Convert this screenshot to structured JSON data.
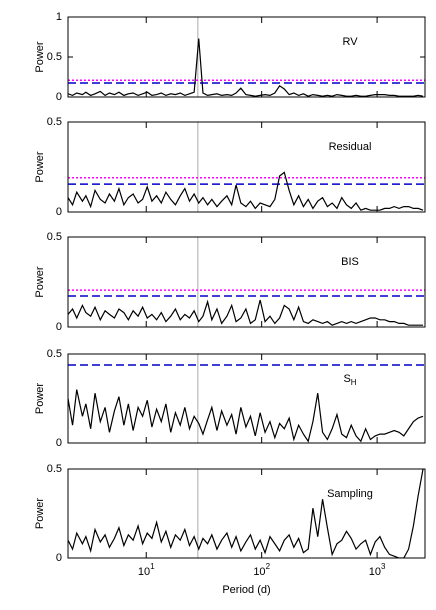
{
  "chart_data": [
    {
      "type": "line",
      "title": "RV",
      "ylabel": "Power",
      "xscale": "log",
      "xlim": [
        2.1,
        2600
      ],
      "xticks": [
        10,
        100,
        1000
      ],
      "ylim": [
        0,
        1
      ],
      "yticks": [
        0,
        0.5,
        1
      ],
      "vline": 28,
      "hlines": [
        {
          "value": 0.21,
          "color": "#ff00ff",
          "style": "dotted"
        },
        {
          "value": 0.175,
          "color": "#0000cc",
          "style": "dashed"
        }
      ],
      "series": [
        {
          "color": "#000000",
          "x": [
            2.1,
            2.3,
            2.5,
            2.8,
            3.0,
            3.3,
            3.6,
            4.0,
            4.4,
            4.8,
            5.3,
            5.8,
            6.4,
            7.0,
            7.7,
            8.5,
            9.3,
            10.2,
            11.2,
            12.3,
            13.5,
            14.8,
            16.3,
            17.9,
            19.7,
            21.6,
            23.7,
            26,
            28.5,
            31,
            34,
            37,
            41,
            45,
            50,
            55,
            60,
            66,
            73,
            80,
            88,
            97,
            107,
            118,
            130,
            143,
            157,
            173,
            190,
            209,
            230,
            253,
            278,
            306,
            337,
            371,
            408,
            449,
            494,
            543,
            597,
            657,
            723,
            795,
            875,
            962,
            1058,
            1164,
            1280,
            1408,
            1549,
            1704,
            1874,
            2062,
            2268,
            2500
          ],
          "values": [
            0.04,
            0.02,
            0.05,
            0.03,
            0.06,
            0.02,
            0.04,
            0.07,
            0.02,
            0.05,
            0.03,
            0.06,
            0.02,
            0.04,
            0.05,
            0.02,
            0.04,
            0.06,
            0.02,
            0.03,
            0.05,
            0.02,
            0.04,
            0.03,
            0.05,
            0.02,
            0.04,
            0.06,
            0.73,
            0.05,
            0.02,
            0.03,
            0.04,
            0.02,
            0.03,
            0.02,
            0.05,
            0.11,
            0.03,
            0.02,
            0.01,
            0.02,
            0.03,
            0.02,
            0.05,
            0.14,
            0.1,
            0.03,
            0.05,
            0.02,
            0.04,
            0.01,
            0.03,
            0.02,
            0.01,
            0.02,
            0.01,
            0.03,
            0.02,
            0.01,
            0.01,
            0.02,
            0.01,
            0.01,
            0.02,
            0.03,
            0.03,
            0.03,
            0.02,
            0.02,
            0.01,
            0.01,
            0.01,
            0.01,
            0.02,
            0.01
          ]
        }
      ]
    },
    {
      "type": "line",
      "title": "Residual",
      "ylabel": "Power",
      "xscale": "log",
      "xlim": [
        2.1,
        2600
      ],
      "xticks": [
        10,
        100,
        1000
      ],
      "ylim": [
        0,
        0.5
      ],
      "yticks": [
        0,
        0.5
      ],
      "vline": 28,
      "hlines": [
        {
          "value": 0.19,
          "color": "#ff00ff",
          "style": "dotted"
        },
        {
          "value": 0.155,
          "color": "#0000cc",
          "style": "dashed"
        }
      ],
      "series": [
        {
          "color": "#000000",
          "x": [
            2.1,
            2.3,
            2.5,
            2.8,
            3.0,
            3.3,
            3.6,
            4.0,
            4.4,
            4.8,
            5.3,
            5.8,
            6.4,
            7.0,
            7.7,
            8.5,
            9.3,
            10.2,
            11.2,
            12.3,
            13.5,
            14.8,
            16.3,
            17.9,
            19.7,
            21.6,
            23.7,
            26,
            28.5,
            31,
            34,
            37,
            41,
            45,
            50,
            55,
            60,
            66,
            73,
            80,
            88,
            97,
            107,
            118,
            130,
            143,
            157,
            173,
            190,
            209,
            230,
            253,
            278,
            306,
            337,
            371,
            408,
            449,
            494,
            543,
            597,
            657,
            723,
            795,
            875,
            962,
            1058,
            1164,
            1280,
            1408,
            1549,
            1704,
            1874,
            2062,
            2268,
            2500
          ],
          "values": [
            0.08,
            0.04,
            0.11,
            0.06,
            0.09,
            0.03,
            0.12,
            0.07,
            0.05,
            0.1,
            0.06,
            0.13,
            0.04,
            0.08,
            0.1,
            0.05,
            0.07,
            0.14,
            0.06,
            0.09,
            0.05,
            0.11,
            0.07,
            0.04,
            0.09,
            0.13,
            0.06,
            0.1,
            0.05,
            0.08,
            0.04,
            0.07,
            0.03,
            0.06,
            0.09,
            0.04,
            0.15,
            0.05,
            0.03,
            0.06,
            0.02,
            0.05,
            0.04,
            0.03,
            0.07,
            0.2,
            0.22,
            0.12,
            0.04,
            0.09,
            0.03,
            0.07,
            0.02,
            0.06,
            0.08,
            0.03,
            0.05,
            0.02,
            0.08,
            0.04,
            0.02,
            0.05,
            0.01,
            0.02,
            0.01,
            0.01,
            0.01,
            0.02,
            0.02,
            0.03,
            0.02,
            0.03,
            0.03,
            0.02,
            0.02,
            0.01
          ]
        }
      ]
    },
    {
      "type": "line",
      "title": "BIS",
      "ylabel": "Power",
      "xscale": "log",
      "xlim": [
        2.1,
        2600
      ],
      "xticks": [
        10,
        100,
        1000
      ],
      "ylim": [
        0,
        0.5
      ],
      "yticks": [
        0,
        0.5
      ],
      "vline": 28,
      "hlines": [
        {
          "value": 0.205,
          "color": "#ff00ff",
          "style": "dotted"
        },
        {
          "value": 0.172,
          "color": "#0000cc",
          "style": "dashed"
        }
      ],
      "series": [
        {
          "color": "#000000",
          "x": [
            2.1,
            2.3,
            2.5,
            2.8,
            3.0,
            3.3,
            3.6,
            4.0,
            4.4,
            4.8,
            5.3,
            5.8,
            6.4,
            7.0,
            7.7,
            8.5,
            9.3,
            10.2,
            11.2,
            12.3,
            13.5,
            14.8,
            16.3,
            17.9,
            19.7,
            21.6,
            23.7,
            26,
            28.5,
            31,
            34,
            37,
            41,
            45,
            50,
            55,
            60,
            66,
            73,
            80,
            88,
            97,
            107,
            118,
            130,
            143,
            157,
            173,
            190,
            209,
            230,
            253,
            278,
            306,
            337,
            371,
            408,
            449,
            494,
            543,
            597,
            657,
            723,
            795,
            875,
            962,
            1058,
            1164,
            1280,
            1408,
            1549,
            1704,
            1874,
            2062,
            2268,
            2500
          ],
          "values": [
            0.07,
            0.1,
            0.05,
            0.12,
            0.08,
            0.06,
            0.11,
            0.04,
            0.09,
            0.07,
            0.05,
            0.1,
            0.08,
            0.04,
            0.09,
            0.06,
            0.11,
            0.05,
            0.07,
            0.04,
            0.08,
            0.03,
            0.06,
            0.1,
            0.04,
            0.07,
            0.05,
            0.09,
            0.03,
            0.06,
            0.14,
            0.04,
            0.1,
            0.02,
            0.06,
            0.12,
            0.03,
            0.05,
            0.1,
            0.02,
            0.04,
            0.15,
            0.03,
            0.06,
            0.02,
            0.05,
            0.12,
            0.1,
            0.04,
            0.11,
            0.03,
            0.02,
            0.04,
            0.03,
            0.02,
            0.03,
            0.01,
            0.02,
            0.03,
            0.02,
            0.03,
            0.02,
            0.03,
            0.04,
            0.05,
            0.05,
            0.04,
            0.04,
            0.03,
            0.03,
            0.02,
            0.02,
            0.01,
            0.01,
            0.01,
            0.01
          ]
        }
      ]
    },
    {
      "type": "line",
      "title": "S",
      "title_subscript": "H",
      "ylabel": "Power",
      "xscale": "log",
      "xlim": [
        2.1,
        2600
      ],
      "xticks": [
        10,
        100,
        1000
      ],
      "ylim": [
        0,
        0.5
      ],
      "yticks": [
        0,
        0.5
      ],
      "vline": 28,
      "hlines": [
        {
          "value": 0.438,
          "color": "#0000cc",
          "style": "dashed"
        }
      ],
      "series": [
        {
          "color": "#000000",
          "x": [
            2.1,
            2.3,
            2.5,
            2.8,
            3.0,
            3.3,
            3.6,
            4.0,
            4.4,
            4.8,
            5.3,
            5.8,
            6.4,
            7.0,
            7.7,
            8.5,
            9.3,
            10.2,
            11.2,
            12.3,
            13.5,
            14.8,
            16.3,
            17.9,
            19.7,
            21.6,
            23.7,
            26,
            28.5,
            31,
            34,
            37,
            41,
            45,
            50,
            55,
            60,
            66,
            73,
            80,
            88,
            97,
            107,
            118,
            130,
            143,
            157,
            173,
            190,
            209,
            230,
            253,
            278,
            306,
            337,
            371,
            408,
            449,
            494,
            543,
            597,
            657,
            723,
            795,
            875,
            962,
            1058,
            1164,
            1280,
            1408,
            1549,
            1704,
            1874,
            2062,
            2268,
            2500
          ],
          "values": [
            0.25,
            0.1,
            0.3,
            0.15,
            0.22,
            0.08,
            0.28,
            0.12,
            0.2,
            0.06,
            0.18,
            0.26,
            0.1,
            0.22,
            0.07,
            0.2,
            0.15,
            0.24,
            0.09,
            0.19,
            0.12,
            0.22,
            0.06,
            0.17,
            0.1,
            0.2,
            0.08,
            0.15,
            0.11,
            0.05,
            0.13,
            0.2,
            0.07,
            0.18,
            0.1,
            0.16,
            0.05,
            0.2,
            0.09,
            0.15,
            0.04,
            0.17,
            0.06,
            0.12,
            0.03,
            0.11,
            0.08,
            0.14,
            0.02,
            0.1,
            0.05,
            0.01,
            0.12,
            0.28,
            0.06,
            0.02,
            0.08,
            0.16,
            0.05,
            0.03,
            0.1,
            0.04,
            0.01,
            0.08,
            0.02,
            0.04,
            0.05,
            0.05,
            0.06,
            0.07,
            0.06,
            0.04,
            0.08,
            0.12,
            0.14,
            0.15
          ]
        }
      ]
    },
    {
      "type": "line",
      "title": "Sampling",
      "ylabel": "Power",
      "xlabel": "Period (d)",
      "xscale": "log",
      "xlim": [
        2.1,
        2600
      ],
      "xticks": [
        {
          "value": 10,
          "label": "10",
          "exponent": "1"
        },
        {
          "value": 100,
          "label": "10",
          "exponent": "2"
        },
        {
          "value": 1000,
          "label": "10",
          "exponent": "3"
        }
      ],
      "ylim": [
        0,
        0.5
      ],
      "yticks": [
        0,
        0.5
      ],
      "vline": 28,
      "hlines": [],
      "series": [
        {
          "color": "#000000",
          "x": [
            2.1,
            2.3,
            2.5,
            2.8,
            3.0,
            3.3,
            3.6,
            4.0,
            4.4,
            4.8,
            5.3,
            5.8,
            6.4,
            7.0,
            7.7,
            8.5,
            9.3,
            10.2,
            11.2,
            12.3,
            13.5,
            14.8,
            16.3,
            17.9,
            19.7,
            21.6,
            23.7,
            26,
            28.5,
            31,
            34,
            37,
            41,
            45,
            50,
            55,
            60,
            66,
            73,
            80,
            88,
            97,
            107,
            118,
            130,
            143,
            157,
            173,
            190,
            209,
            230,
            253,
            278,
            306,
            337,
            371,
            408,
            449,
            494,
            543,
            597,
            657,
            723,
            795,
            875,
            962,
            1058,
            1164,
            1280,
            1408,
            1549,
            1704,
            1874,
            2062,
            2268,
            2500
          ],
          "values": [
            0.1,
            0.05,
            0.14,
            0.08,
            0.12,
            0.04,
            0.16,
            0.09,
            0.13,
            0.06,
            0.11,
            0.17,
            0.07,
            0.13,
            0.1,
            0.18,
            0.08,
            0.14,
            0.11,
            0.2,
            0.09,
            0.15,
            0.06,
            0.13,
            0.1,
            0.16,
            0.07,
            0.12,
            0.05,
            0.11,
            0.08,
            0.13,
            0.05,
            0.1,
            0.14,
            0.06,
            0.12,
            0.04,
            0.09,
            0.13,
            0.05,
            0.1,
            0.03,
            0.12,
            0.08,
            0.04,
            0.1,
            0.13,
            0.06,
            0.11,
            0.03,
            0.05,
            0.28,
            0.12,
            0.33,
            0.17,
            0.02,
            0.08,
            0.1,
            0.15,
            0.11,
            0.05,
            0.08,
            0.1,
            0.02,
            0.09,
            0.12,
            0.06,
            0.02,
            0.01,
            0,
            0,
            0.05,
            0.18,
            0.35,
            0.5
          ]
        }
      ]
    }
  ]
}
